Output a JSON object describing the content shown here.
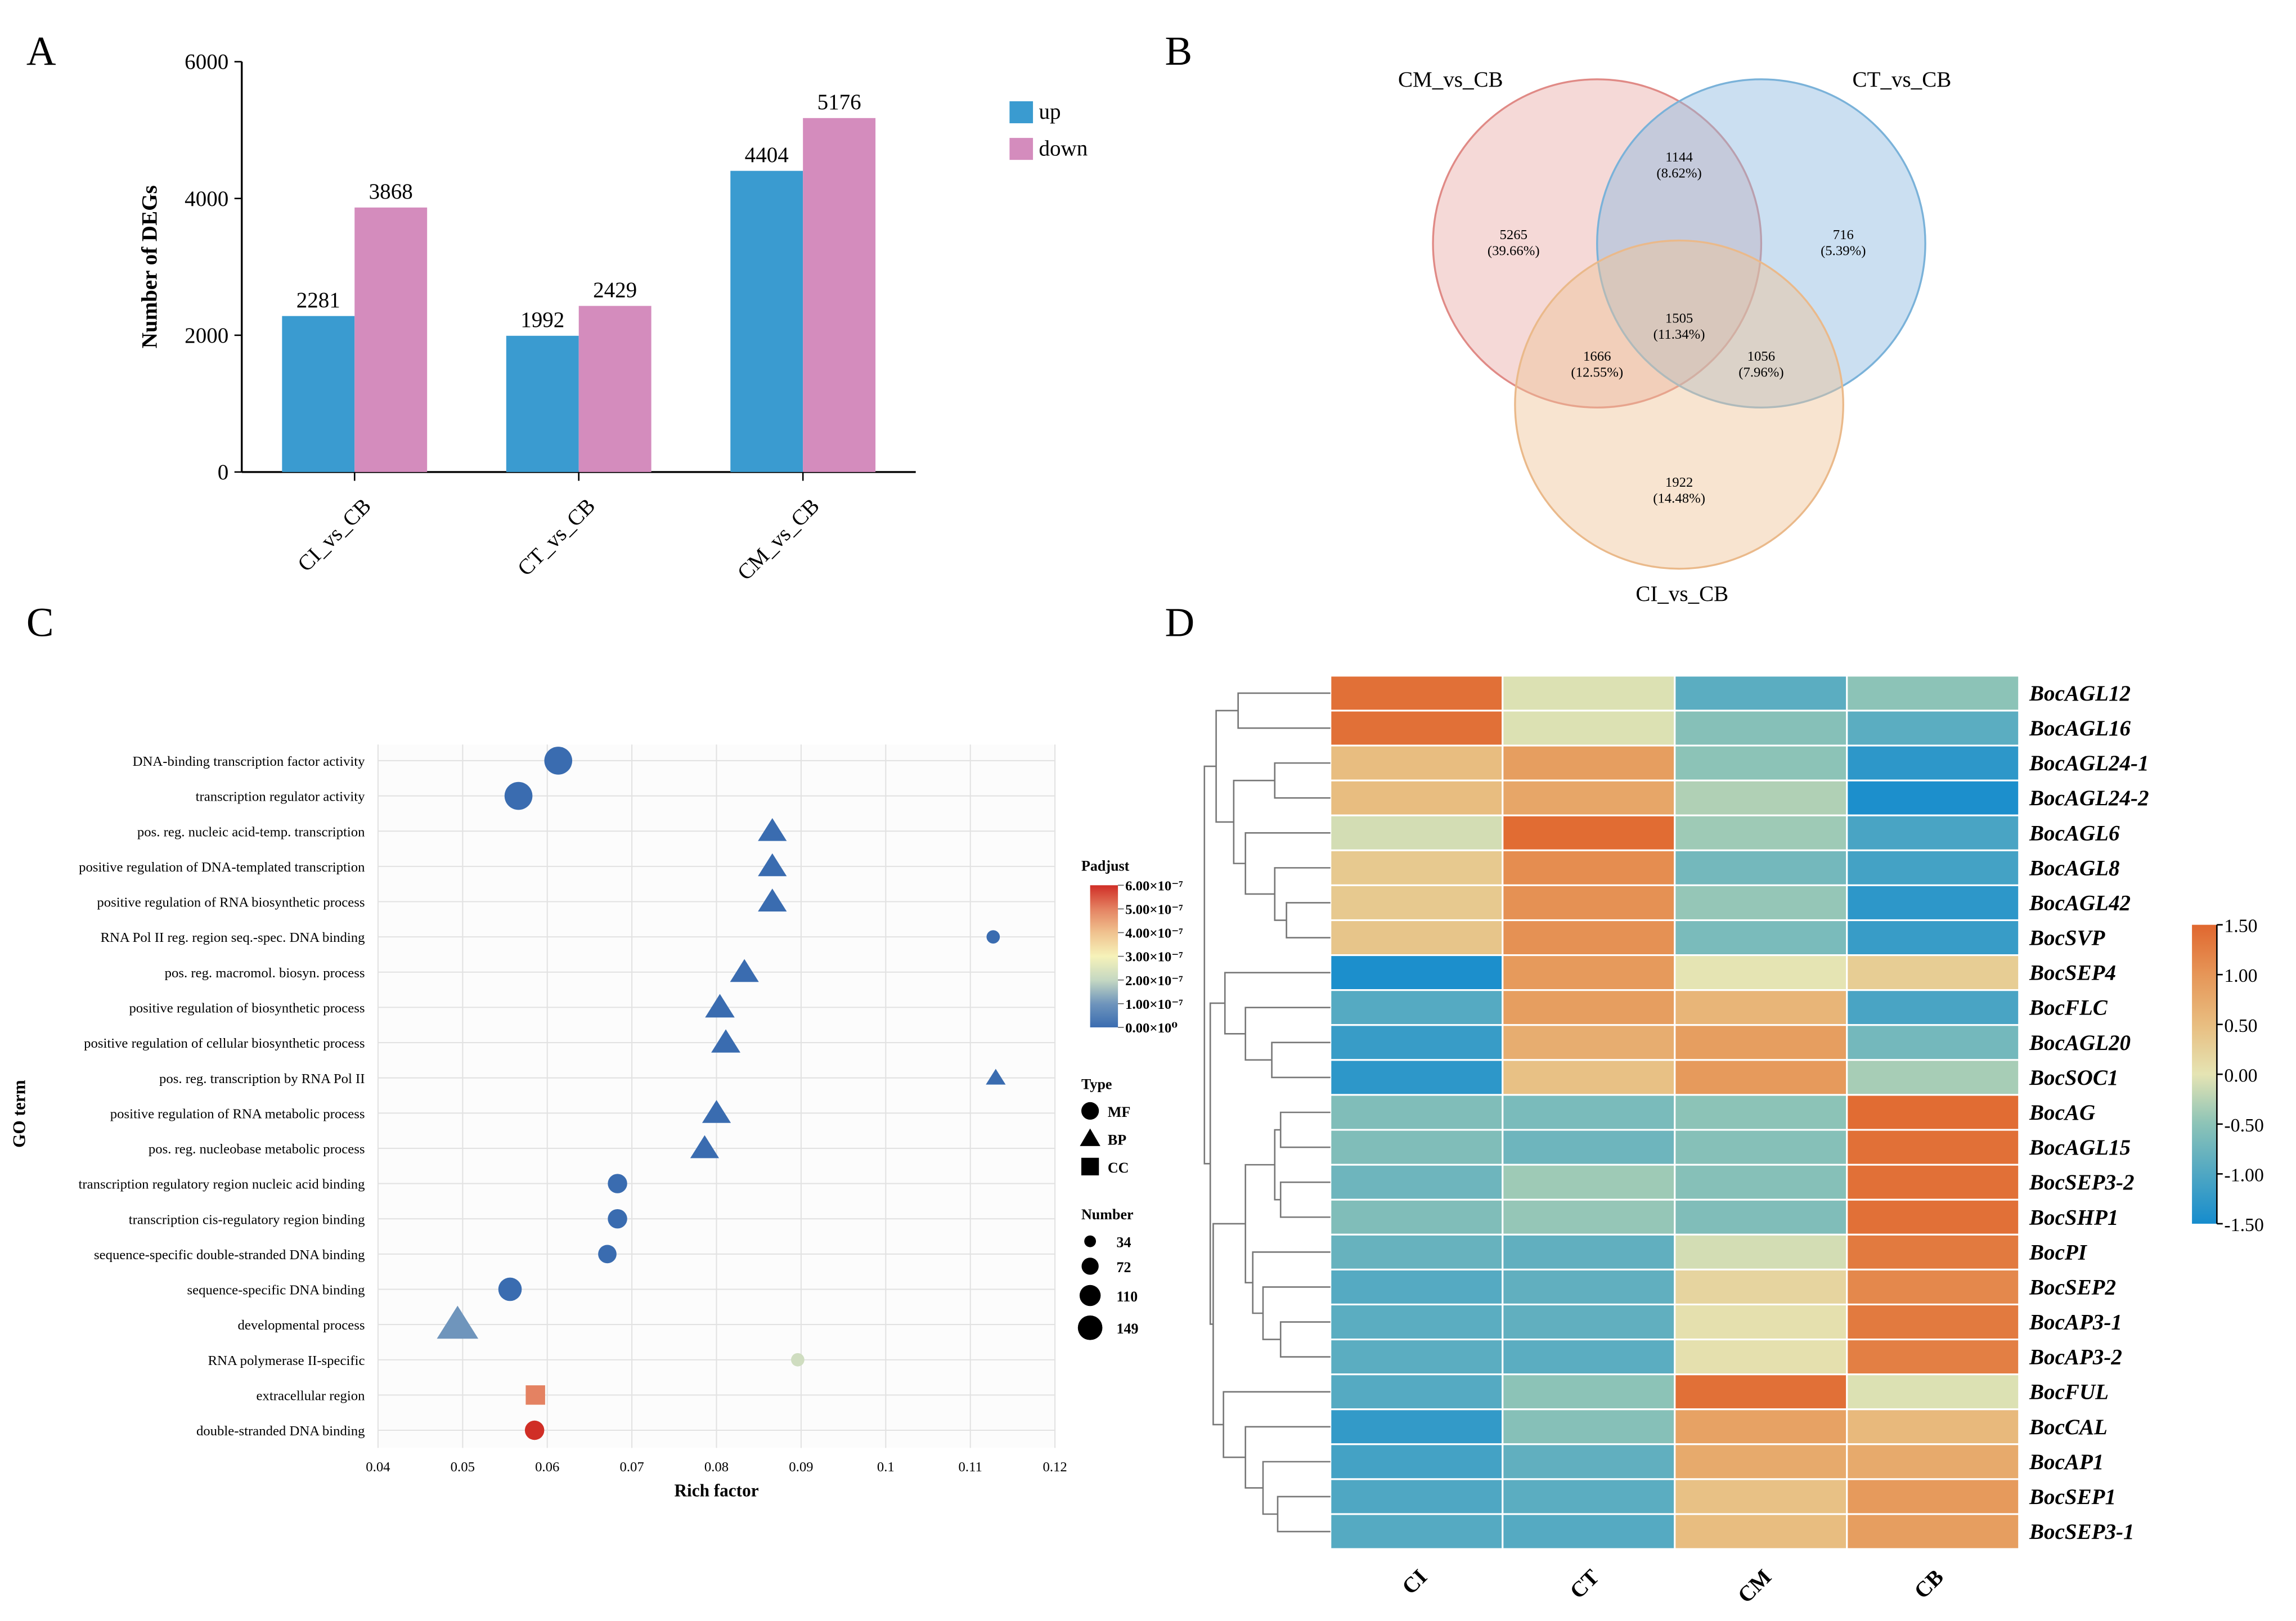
{
  "chart_data": [
    {
      "panel": "A",
      "type": "bar",
      "ylabel": "Number of DEGs",
      "ylim": [
        0,
        6000
      ],
      "yticks": [
        0,
        2000,
        4000,
        6000
      ],
      "categories": [
        "CI_vs_CB",
        "CT_vs_CB",
        "CM_vs_CB"
      ],
      "series": [
        {
          "name": "up",
          "color": "#3a9bd0",
          "values": [
            2281,
            1992,
            4404
          ]
        },
        {
          "name": "down",
          "color": "#d48cbd",
          "values": [
            3868,
            2429,
            5176
          ]
        }
      ],
      "legend": "top-right"
    },
    {
      "panel": "B",
      "type": "venn",
      "sets": [
        {
          "name": "CM_vs_CB",
          "color": "#e08a86"
        },
        {
          "name": "CT_vs_CB",
          "color": "#7ab2d9"
        },
        {
          "name": "CI_vs_CB",
          "color": "#eab98a"
        }
      ],
      "regions": [
        {
          "sets": [
            "CM_vs_CB"
          ],
          "count": "5265",
          "pct": "(39.66%)"
        },
        {
          "sets": [
            "CM_vs_CB",
            "CT_vs_CB"
          ],
          "count": "1144",
          "pct": "(8.62%)"
        },
        {
          "sets": [
            "CT_vs_CB"
          ],
          "count": "716",
          "pct": "(5.39%)"
        },
        {
          "sets": [
            "CM_vs_CB",
            "CT_vs_CB",
            "CI_vs_CB"
          ],
          "count": "1505",
          "pct": "(11.34%)"
        },
        {
          "sets": [
            "CM_vs_CB",
            "CI_vs_CB"
          ],
          "count": "1666",
          "pct": "(12.55%)"
        },
        {
          "sets": [
            "CT_vs_CB",
            "CI_vs_CB"
          ],
          "count": "1056",
          "pct": "(7.96%)"
        },
        {
          "sets": [
            "CI_vs_CB"
          ],
          "count": "1922",
          "pct": "(14.48%)"
        }
      ]
    },
    {
      "panel": "C",
      "type": "scatter",
      "xlabel": "Rich factor",
      "ylabel": "GO term",
      "xlim": [
        0.04,
        0.12
      ],
      "xticks": [
        "0.04",
        "0.05",
        "0.06",
        "0.07",
        "0.08",
        "0.09",
        "0.1",
        "0.11",
        "0.12"
      ],
      "grid": true,
      "points": [
        {
          "term": "DNA-binding transcription factor activity",
          "x": 0.0613,
          "type": "MF",
          "number": 149,
          "padj": 0.0
        },
        {
          "term": "transcription regulator activity",
          "x": 0.0566,
          "type": "MF",
          "number": 149,
          "padj": 0.0
        },
        {
          "term": "pos. reg. nucleic acid-temp. transcription",
          "x": 0.0866,
          "type": "BP",
          "number": 72,
          "padj": 0.0
        },
        {
          "term": "positive regulation of DNA-templated transcription",
          "x": 0.0866,
          "type": "BP",
          "number": 72,
          "padj": 0.0
        },
        {
          "term": "positive regulation of RNA biosynthetic process",
          "x": 0.0866,
          "type": "BP",
          "number": 72,
          "padj": 0.0
        },
        {
          "term": "RNA Pol II reg. region seq.-spec. DNA binding",
          "x": 0.1127,
          "type": "MF",
          "number": 34,
          "padj": 0.0
        },
        {
          "term": "pos. reg. macromol. biosyn. process",
          "x": 0.0833,
          "type": "BP",
          "number": 72,
          "padj": 0.0
        },
        {
          "term": "positive regulation of biosynthetic process",
          "x": 0.0804,
          "type": "BP",
          "number": 76,
          "padj": 0.0
        },
        {
          "term": "positive regulation of cellular biosynthetic process",
          "x": 0.0811,
          "type": "BP",
          "number": 74,
          "padj": 0.0
        },
        {
          "term": "pos. reg. transcription by RNA Pol II",
          "x": 0.113,
          "type": "BP",
          "number": 34,
          "padj": 0.0
        },
        {
          "term": "positive regulation of RNA metabolic process",
          "x": 0.08,
          "type": "BP",
          "number": 72,
          "padj": 0.0
        },
        {
          "term": "pos. reg. nucleobase metabolic process",
          "x": 0.0786,
          "type": "BP",
          "number": 72,
          "padj": 0.0
        },
        {
          "term": "transcription regulatory region nucleic acid binding",
          "x": 0.0683,
          "type": "MF",
          "number": 72,
          "padj": 0.0
        },
        {
          "term": "transcription cis-regulatory region binding",
          "x": 0.0683,
          "type": "MF",
          "number": 72,
          "padj": 0.0
        },
        {
          "term": "sequence-specific double-stranded DNA binding",
          "x": 0.0671,
          "type": "MF",
          "number": 65,
          "padj": 0.0
        },
        {
          "term": "sequence-specific DNA binding",
          "x": 0.0556,
          "type": "MF",
          "number": 105,
          "padj": 0.0
        },
        {
          "term": "developmental process",
          "x": 0.0494,
          "type": "BP",
          "number": 149,
          "padj": 1e-07
        },
        {
          "term": "RNA polymerase II-specific",
          "x": 0.0896,
          "type": "MF",
          "number": 34,
          "padj": 2.2e-07
        },
        {
          "term": "extracellular region",
          "x": 0.0586,
          "type": "CC",
          "number": 72,
          "padj": 5e-07
        },
        {
          "term": "double-stranded DNA binding",
          "x": 0.0585,
          "type": "MF",
          "number": 72,
          "padj": 6e-07
        }
      ],
      "legend": {
        "padjust_title": "Padjust",
        "padjust_ticks": [
          "6.00×10⁻⁷",
          "5.00×10⁻⁷",
          "4.00×10⁻⁷",
          "3.00×10⁻⁷",
          "2.00×10⁻⁷",
          "1.00×10⁻⁷",
          "0.00×10⁰"
        ],
        "type_title": "Type",
        "types": [
          "MF",
          "BP",
          "CC"
        ],
        "number_title": "Number",
        "numbers": [
          34,
          72,
          110,
          149
        ],
        "placement": "right"
      }
    },
    {
      "panel": "D",
      "type": "heatmap",
      "columns": [
        "CI",
        "CT",
        "CM",
        "CB"
      ],
      "rows": [
        "BocAGL12",
        "BocAGL16",
        "BocAGL24-1",
        "BocAGL24-2",
        "BocAGL6",
        "BocAGL8",
        "BocAGL42",
        "BocSVP",
        "BocSEP4",
        "BocFLC",
        "BocAGL20",
        "BocSOC1",
        "BocAG",
        "BocAGL15",
        "BocSEP3-2",
        "BocSHP1",
        "BocPI",
        "BocSEP2",
        "BocAP3-1",
        "BocAP3-2",
        "BocFUL",
        "BocCAL",
        "BocAP1",
        "BocSEP1",
        "BocSEP3-1"
      ],
      "values": [
        [
          1.4,
          -0.05,
          -0.9,
          -0.5
        ],
        [
          1.4,
          -0.05,
          -0.55,
          -0.9
        ],
        [
          0.5,
          0.9,
          -0.5,
          -1.3
        ],
        [
          0.5,
          0.8,
          -0.3,
          -1.45
        ],
        [
          -0.1,
          1.45,
          -0.4,
          -1.05
        ],
        [
          0.35,
          1.1,
          -0.7,
          -1.1
        ],
        [
          0.35,
          1.05,
          -0.45,
          -1.3
        ],
        [
          0.4,
          1.05,
          -0.65,
          -1.2
        ],
        [
          -1.45,
          0.95,
          0.0,
          0.3
        ],
        [
          -0.95,
          0.9,
          0.6,
          -1.05
        ],
        [
          -1.2,
          0.7,
          0.9,
          -0.7
        ],
        [
          -1.3,
          0.45,
          0.95,
          -0.35
        ],
        [
          -0.6,
          -0.65,
          -0.5,
          1.45
        ],
        [
          -0.6,
          -0.75,
          -0.55,
          1.4
        ],
        [
          -0.75,
          -0.4,
          -0.55,
          1.4
        ],
        [
          -0.6,
          -0.45,
          -0.6,
          1.4
        ],
        [
          -0.8,
          -0.85,
          -0.1,
          1.3
        ],
        [
          -0.95,
          -0.85,
          0.2,
          1.15
        ],
        [
          -0.9,
          -0.85,
          0.05,
          1.3
        ],
        [
          -0.9,
          -0.9,
          0.05,
          1.25
        ],
        [
          -0.95,
          -0.5,
          1.4,
          -0.05
        ],
        [
          -1.25,
          -0.55,
          0.85,
          0.55
        ],
        [
          -1.1,
          -0.85,
          0.75,
          0.75
        ],
        [
          -1.0,
          -0.9,
          0.45,
          0.95
        ],
        [
          -0.95,
          -0.95,
          0.5,
          0.9
        ]
      ],
      "colorbar_ticks": [
        "1.50",
        "1.00",
        "0.50",
        "0.00",
        "-0.50",
        "-1.00",
        "-1.50"
      ],
      "range": [
        -1.5,
        1.5
      ],
      "row_dendrogram": true
    }
  ],
  "panel_labels": [
    "A",
    "B",
    "C",
    "D"
  ]
}
